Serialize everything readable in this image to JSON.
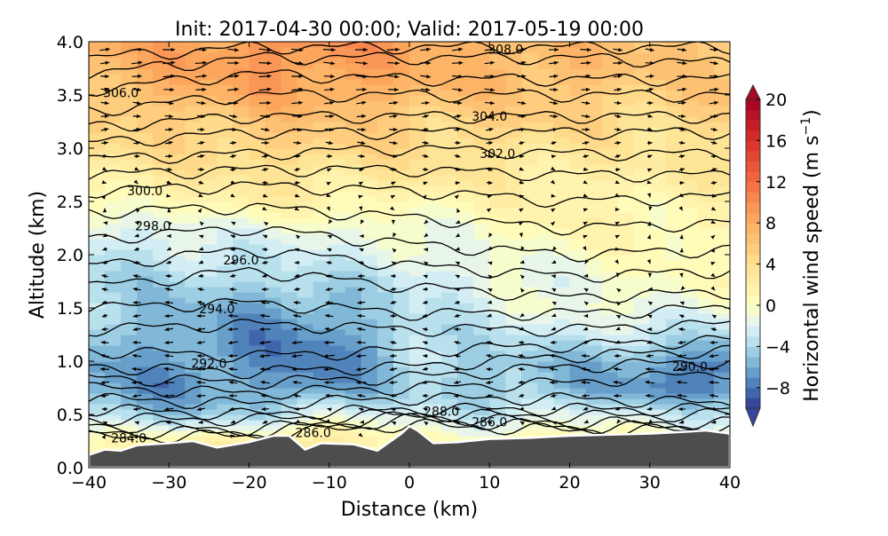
{
  "chart_data": {
    "type": "heatmap",
    "title": "Init: 2017-04-30 00:00; Valid: 2017-05-19 00:00",
    "xlabel": "Distance (km)",
    "ylabel": "Altitude (km)",
    "xlim": [
      -40,
      40
    ],
    "ylim": [
      0,
      4
    ],
    "xticks": [
      "−40",
      "−30",
      "−20",
      "−10",
      "0",
      "10",
      "20",
      "30",
      "40"
    ],
    "xtick_values": [
      -40,
      -30,
      -20,
      -10,
      0,
      10,
      20,
      30,
      40
    ],
    "yticks": [
      "0.0",
      "0.5",
      "1.0",
      "1.5",
      "2.0",
      "2.5",
      "3.0",
      "3.5",
      "4.0"
    ],
    "ytick_values": [
      0,
      0.5,
      1,
      1.5,
      2,
      2.5,
      3,
      3.5,
      4
    ],
    "colorbar": {
      "label": "Horizontal wind speed (m s",
      "label_sup": "−1",
      "label_end": ")",
      "range": [
        -10,
        20
      ],
      "extend": "both",
      "ticks": [
        "20",
        "16",
        "12",
        "8",
        "4",
        "0",
        "−4",
        "−8"
      ],
      "tick_values": [
        20,
        16,
        12,
        8,
        4,
        0,
        -4,
        -8
      ],
      "color_stops": [
        [
          -10,
          "#313695"
        ],
        [
          -8,
          "#4575b4"
        ],
        [
          -6,
          "#74add1"
        ],
        [
          -4,
          "#abd9e9"
        ],
        [
          -2,
          "#e0f3f8"
        ],
        [
          0,
          "#ffffbf"
        ],
        [
          4,
          "#fee090"
        ],
        [
          8,
          "#fdae61"
        ],
        [
          12,
          "#f46d43"
        ],
        [
          16,
          "#d73027"
        ],
        [
          20,
          "#a50026"
        ]
      ]
    },
    "wind_field": {
      "x": [
        -40,
        -30,
        -20,
        -10,
        0,
        10,
        20,
        30,
        40
      ],
      "z": [
        0,
        0.25,
        0.5,
        0.75,
        1.0,
        1.25,
        1.5,
        1.75,
        2.0,
        2.25,
        2.5,
        2.75,
        3.0,
        3.25,
        3.5,
        3.75,
        4.0
      ],
      "values": [
        [
          0,
          0,
          0,
          0,
          0,
          0,
          0,
          0,
          0
        ],
        [
          1,
          1,
          2,
          3,
          0,
          1,
          1,
          0,
          0
        ],
        [
          -4,
          -5,
          -4,
          -2,
          -2,
          -3,
          -2,
          -2,
          -3
        ],
        [
          -6,
          -7,
          -6,
          -7,
          -4,
          -5,
          -5,
          -7,
          -8
        ],
        [
          -6,
          -6,
          -7,
          -8,
          -4,
          -4,
          -5,
          -6,
          -8
        ],
        [
          -5,
          -6,
          -7,
          -7,
          -4,
          -3,
          -3,
          -3,
          -4
        ],
        [
          -4,
          -5,
          -6,
          -6,
          -3,
          -2,
          -1,
          -1,
          -1
        ],
        [
          -4,
          -4,
          -4,
          -4,
          -3,
          -2,
          -1,
          0,
          0
        ],
        [
          -3,
          -3,
          -3,
          -2,
          -2,
          -1,
          0,
          0,
          0
        ],
        [
          -2,
          -2,
          -1,
          -1,
          -1,
          0,
          1,
          1,
          1
        ],
        [
          0,
          1,
          2,
          1,
          1,
          1,
          2,
          1,
          1
        ],
        [
          2,
          3,
          3,
          3,
          3,
          3,
          2,
          2,
          3
        ],
        [
          4,
          4,
          5,
          5,
          4,
          4,
          3,
          3,
          4
        ],
        [
          5,
          5,
          6,
          6,
          5,
          5,
          5,
          4,
          5
        ],
        [
          6,
          7,
          8,
          8,
          7,
          6,
          6,
          5,
          6
        ],
        [
          7,
          8,
          9,
          9,
          8,
          7,
          7,
          6,
          6
        ],
        [
          8,
          8,
          9,
          10,
          8,
          7,
          7,
          6,
          6
        ]
      ]
    },
    "terrain": {
      "x": [
        -40,
        -38,
        -36,
        -34,
        -30,
        -27,
        -24,
        -20,
        -17,
        -15,
        -13,
        -11,
        -7,
        -4,
        -1,
        0,
        1,
        3,
        6,
        10,
        15,
        20,
        25,
        30,
        35,
        37,
        40
      ],
      "z": [
        0.12,
        0.17,
        0.16,
        0.21,
        0.23,
        0.25,
        0.19,
        0.24,
        0.3,
        0.3,
        0.17,
        0.23,
        0.22,
        0.16,
        0.32,
        0.39,
        0.35,
        0.23,
        0.24,
        0.27,
        0.28,
        0.3,
        0.31,
        0.32,
        0.34,
        0.35,
        0.32
      ]
    },
    "isentropes": {
      "x": [
        -40,
        -20,
        0,
        20,
        40
      ],
      "levels": [
        {
          "theta": 284,
          "z": [
            0.28,
            0.3,
            0.4,
            0.35,
            0.35
          ]
        },
        {
          "theta": 285,
          "z": [
            0.33,
            0.33,
            0.45,
            0.38,
            0.38
          ]
        },
        {
          "theta": 286,
          "z": [
            0.4,
            0.36,
            0.48,
            0.42,
            0.42
          ]
        },
        {
          "theta": 287,
          "z": [
            0.46,
            0.45,
            0.5,
            0.48,
            0.5
          ]
        },
        {
          "theta": 288,
          "z": [
            0.55,
            0.5,
            0.55,
            0.55,
            0.55
          ]
        },
        {
          "theta": 289,
          "z": [
            0.65,
            0.6,
            0.65,
            0.65,
            0.6
          ]
        },
        {
          "theta": 290,
          "z": [
            0.75,
            0.7,
            0.75,
            0.8,
            0.9
          ]
        },
        {
          "theta": 291,
          "z": [
            0.85,
            0.8,
            0.85,
            0.95,
            1.0
          ]
        },
        {
          "theta": 292,
          "z": [
            0.95,
            0.9,
            0.95,
            1.05,
            1.1
          ]
        },
        {
          "theta": 293,
          "z": [
            1.1,
            1.05,
            1.1,
            1.15,
            1.2
          ]
        },
        {
          "theta": 294,
          "z": [
            1.3,
            1.35,
            1.3,
            1.3,
            1.35
          ]
        },
        {
          "theta": 295,
          "z": [
            1.5,
            1.55,
            1.45,
            1.45,
            1.5
          ]
        },
        {
          "theta": 296,
          "z": [
            1.7,
            1.85,
            1.7,
            1.6,
            1.65
          ]
        },
        {
          "theta": 297,
          "z": [
            1.9,
            2.05,
            1.9,
            1.8,
            1.85
          ]
        },
        {
          "theta": 298,
          "z": [
            2.15,
            2.25,
            2.1,
            2.0,
            2.05
          ]
        },
        {
          "theta": 299,
          "z": [
            2.4,
            2.45,
            2.35,
            2.25,
            2.3
          ]
        },
        {
          "theta": 300,
          "z": [
            2.6,
            2.65,
            2.6,
            2.5,
            2.55
          ]
        },
        {
          "theta": 301,
          "z": [
            2.75,
            2.8,
            2.8,
            2.75,
            2.75
          ]
        },
        {
          "theta": 302,
          "z": [
            2.9,
            2.95,
            3.0,
            2.95,
            2.95
          ]
        },
        {
          "theta": 303,
          "z": [
            3.05,
            3.15,
            3.15,
            3.15,
            3.15
          ]
        },
        {
          "theta": 304,
          "z": [
            3.2,
            3.3,
            3.3,
            3.3,
            3.3
          ]
        },
        {
          "theta": 305,
          "z": [
            3.35,
            3.5,
            3.5,
            3.5,
            3.5
          ]
        },
        {
          "theta": 306,
          "z": [
            3.55,
            3.7,
            3.65,
            3.65,
            3.65
          ]
        },
        {
          "theta": 307,
          "z": [
            3.7,
            3.85,
            3.85,
            3.85,
            3.8
          ]
        },
        {
          "theta": 308,
          "z": [
            3.85,
            3.95,
            3.95,
            3.95,
            3.95
          ]
        }
      ]
    },
    "contour_labels": [
      {
        "text": "284.0",
        "x": -35,
        "z": 0.28
      },
      {
        "text": "286.0",
        "x": -12,
        "z": 0.33
      },
      {
        "text": "286.0",
        "x": 10,
        "z": 0.43
      },
      {
        "text": "288.0",
        "x": 4,
        "z": 0.53
      },
      {
        "text": "290.0",
        "x": 35,
        "z": 0.95
      },
      {
        "text": "292.0",
        "x": -25,
        "z": 0.98
      },
      {
        "text": "294.0",
        "x": -24,
        "z": 1.49
      },
      {
        "text": "296.0",
        "x": -21,
        "z": 1.95
      },
      {
        "text": "298.0",
        "x": -32,
        "z": 2.27
      },
      {
        "text": "300.0",
        "x": -33,
        "z": 2.6
      },
      {
        "text": "302.0",
        "x": 11,
        "z": 2.95
      },
      {
        "text": "304.0",
        "x": 10,
        "z": 3.3
      },
      {
        "text": "306.0",
        "x": -36,
        "z": 3.52
      },
      {
        "text": "308.0",
        "x": 12,
        "z": 3.93
      }
    ]
  }
}
